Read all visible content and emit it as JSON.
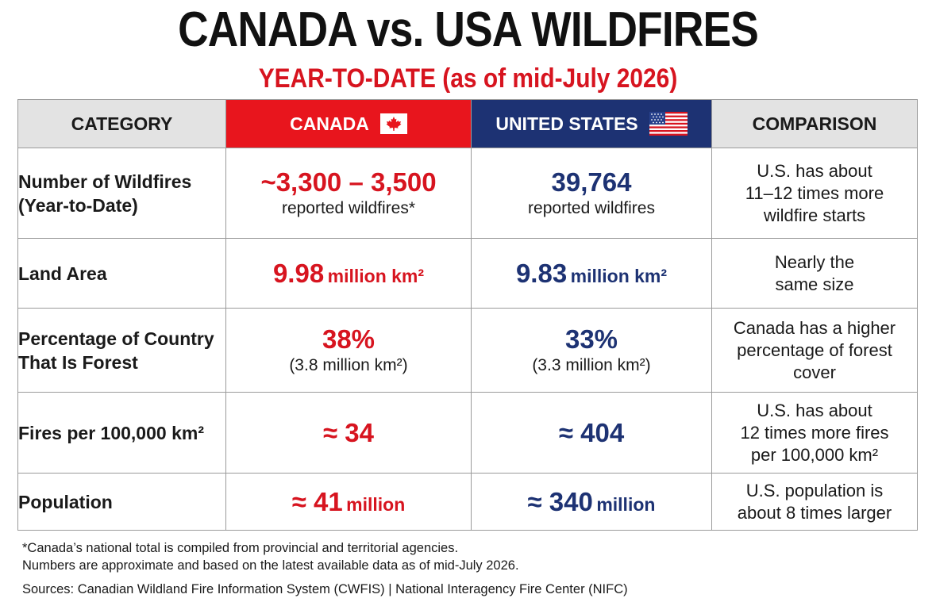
{
  "title": "CANADA vs. USA WILDFIRES",
  "subtitle": "YEAR-TO-DATE (as of mid-July 2026)",
  "colors": {
    "canada_red": "#d7141f",
    "usa_blue": "#1d3273",
    "header_gray": "#e3e3e3"
  },
  "headers": {
    "category": "CATEGORY",
    "canada": "CANADA",
    "canada_icon": "maple-leaf-flag-icon",
    "usa": "UNITED STATES",
    "usa_icon": "us-flag-icon",
    "comparison": "COMPARISON"
  },
  "rows": [
    {
      "category_line1": "Number of Wildfires",
      "category_line2": "(Year-to-Date)",
      "canada_value": "~3,300 – 3,500",
      "canada_note": "reported wildfires*",
      "usa_value": "39,764",
      "usa_note": "reported wildfires",
      "comparison_line1": "U.S. has about",
      "comparison_line2": "11–12 times more",
      "comparison_line3": "wildfire starts"
    },
    {
      "category": "Land Area",
      "canada_value": "9.98",
      "canada_unit": "million km²",
      "usa_value": "9.83",
      "usa_unit": "million km²",
      "comparison_line1": "Nearly the",
      "comparison_line2": "same size"
    },
    {
      "category_line1": "Percentage of Country",
      "category_line2": "That Is Forest",
      "canada_value": "38%",
      "canada_note": "(3.8 million km²)",
      "usa_value": "33%",
      "usa_note": "(3.3 million km²)",
      "comparison_line1": "Canada has a higher",
      "comparison_line2": "percentage of forest",
      "comparison_line3": "cover"
    },
    {
      "category": "Fires per 100,000 km²",
      "canada_value": "≈ 34",
      "usa_value": "≈ 404",
      "comparison_line1": "U.S. has about",
      "comparison_line2": "12 times more fires",
      "comparison_line3": "per 100,000 km²"
    },
    {
      "category": "Population",
      "canada_value": "≈ 41",
      "canada_unit": "million",
      "usa_value": "≈ 340",
      "usa_unit": "million",
      "comparison_line1": "U.S. population is",
      "comparison_line2": "about 8 times larger"
    }
  ],
  "footer": {
    "note1": "*Canada’s national total is compiled from provincial and territorial agencies.",
    "note2": "Numbers are approximate and based on the latest available data as of mid-July 2026.",
    "sources": "Sources: Canadian Wildland Fire Information System (CWFIS)  |  National Interagency Fire Center (NIFC)"
  }
}
